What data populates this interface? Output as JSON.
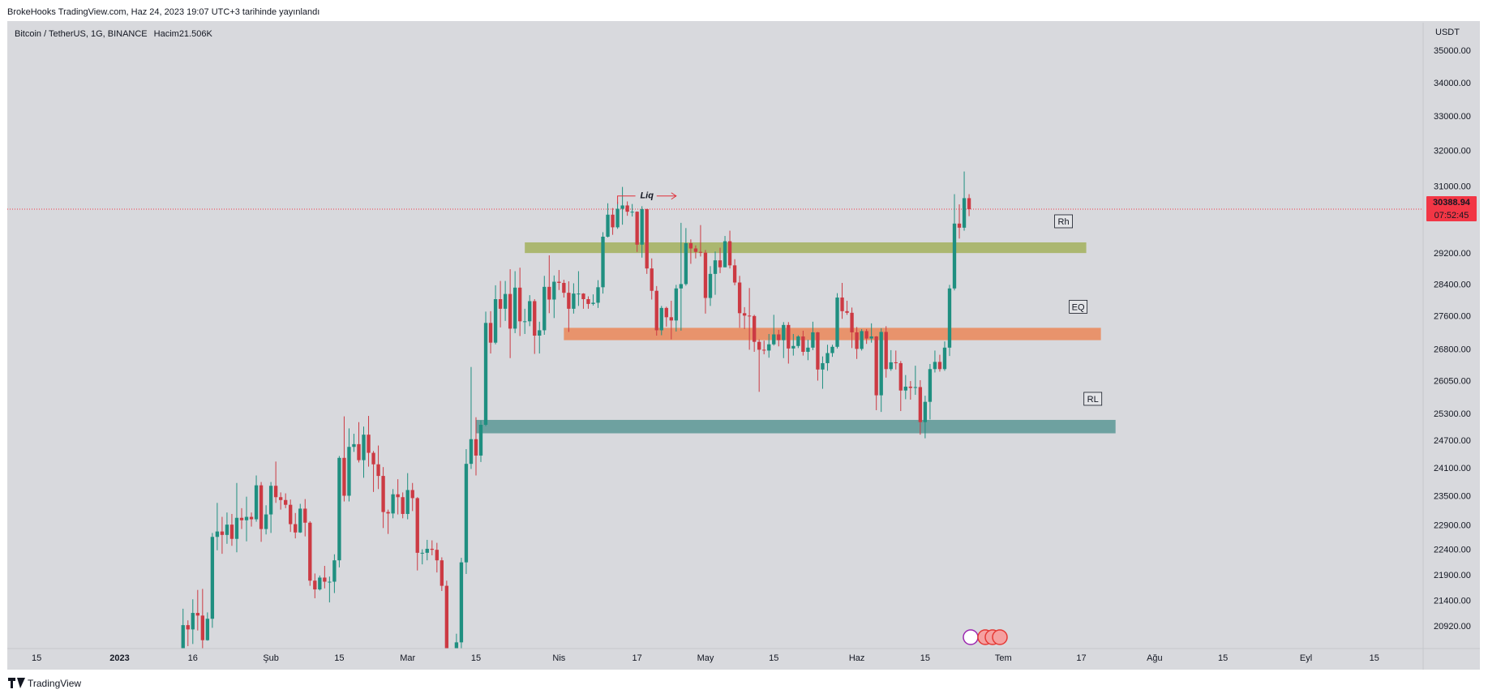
{
  "header": "BrokeHooks TradingView.com, Haz 24, 2023 19:07 UTC+3 tarihinde yayınlandı",
  "footer": "TradingView",
  "chart_data": {
    "type": "candlestick",
    "title": "Bitcoin / TetherUS, 1G, BINANCE",
    "volume_label": "Hacim",
    "volume_value": "21.506K",
    "currency": "USDT",
    "countdown": "07:52:45",
    "log": true,
    "grid": false,
    "up_color": "#1f8f80",
    "down_color": "#cc3a43",
    "last_price_color": "#f23645",
    "x": [
      "2023-01-14",
      "2023-01-15",
      "2023-01-16",
      "2023-01-17",
      "2023-01-18",
      "2023-01-19",
      "2023-01-20",
      "2023-01-21",
      "2023-01-22",
      "2023-01-23",
      "2023-01-24",
      "2023-01-25",
      "2023-01-26",
      "2023-01-27",
      "2023-01-28",
      "2023-01-29",
      "2023-01-30",
      "2023-01-31",
      "2023-02-01",
      "2023-02-02",
      "2023-02-03",
      "2023-02-04",
      "2023-02-05",
      "2023-02-06",
      "2023-02-07",
      "2023-02-08",
      "2023-02-09",
      "2023-02-10",
      "2023-02-11",
      "2023-02-12",
      "2023-02-13",
      "2023-02-14",
      "2023-02-15",
      "2023-02-16",
      "2023-02-17",
      "2023-02-18",
      "2023-02-19",
      "2023-02-20",
      "2023-02-21",
      "2023-02-22",
      "2023-02-23",
      "2023-02-24",
      "2023-02-25",
      "2023-02-26",
      "2023-02-27",
      "2023-02-28",
      "2023-03-01",
      "2023-03-02",
      "2023-03-03",
      "2023-03-04",
      "2023-03-05",
      "2023-03-06",
      "2023-03-07",
      "2023-03-08",
      "2023-03-09",
      "2023-03-10",
      "2023-03-11",
      "2023-03-12",
      "2023-03-13",
      "2023-03-14",
      "2023-03-15",
      "2023-03-16",
      "2023-03-17",
      "2023-03-18",
      "2023-03-19",
      "2023-03-20",
      "2023-03-21",
      "2023-03-22",
      "2023-03-23",
      "2023-03-24",
      "2023-03-25",
      "2023-03-26",
      "2023-03-27",
      "2023-03-28",
      "2023-03-29",
      "2023-03-30",
      "2023-03-31",
      "2023-04-01",
      "2023-04-02",
      "2023-04-03",
      "2023-04-04",
      "2023-04-05",
      "2023-04-06",
      "2023-04-07",
      "2023-04-08",
      "2023-04-09",
      "2023-04-10",
      "2023-04-11",
      "2023-04-12",
      "2023-04-13",
      "2023-04-14",
      "2023-04-15",
      "2023-04-16",
      "2023-04-17",
      "2023-04-18",
      "2023-04-19",
      "2023-04-20",
      "2023-04-21",
      "2023-04-22",
      "2023-04-23",
      "2023-04-24",
      "2023-04-25",
      "2023-04-26",
      "2023-04-27",
      "2023-04-28",
      "2023-04-29",
      "2023-04-30",
      "2023-05-01",
      "2023-05-02",
      "2023-05-03",
      "2023-05-04",
      "2023-05-05",
      "2023-05-06",
      "2023-05-07",
      "2023-05-08",
      "2023-05-09",
      "2023-05-10",
      "2023-05-11",
      "2023-05-12",
      "2023-05-13",
      "2023-05-14",
      "2023-05-15",
      "2023-05-16",
      "2023-05-17",
      "2023-05-18",
      "2023-05-19",
      "2023-05-20",
      "2023-05-21",
      "2023-05-22",
      "2023-05-23",
      "2023-05-24",
      "2023-05-25",
      "2023-05-26",
      "2023-05-27",
      "2023-05-28",
      "2023-05-29",
      "2023-05-30",
      "2023-05-31",
      "2023-06-01",
      "2023-06-02",
      "2023-06-03",
      "2023-06-04",
      "2023-06-05",
      "2023-06-06",
      "2023-06-07",
      "2023-06-08",
      "2023-06-09",
      "2023-06-10",
      "2023-06-11",
      "2023-06-12",
      "2023-06-13",
      "2023-06-14",
      "2023-06-15",
      "2023-06-16",
      "2023-06-17",
      "2023-06-18",
      "2023-06-19",
      "2023-06-20",
      "2023-06-21",
      "2023-06-22",
      "2023-06-23",
      "2023-06-24"
    ],
    "open": [
      19930,
      20950,
      20870,
      21180,
      21130,
      20670,
      21070,
      22670,
      22780,
      22710,
      22920,
      22630,
      23060,
      23010,
      23080,
      23030,
      23740,
      22830,
      23130,
      23730,
      23490,
      23430,
      23330,
      22930,
      22760,
      23250,
      22960,
      21800,
      21630,
      21860,
      21780,
      21780,
      22200,
      24330,
      23520,
      24570,
      24630,
      24280,
      24840,
      24440,
      24190,
      23940,
      23180,
      23150,
      23550,
      23490,
      23140,
      23640,
      23470,
      22350,
      22350,
      22430,
      22410,
      22200,
      21700,
      20360,
      20190,
      20630,
      22160,
      24200,
      24740,
      24380,
      25060,
      27450,
      26970,
      28040,
      27800,
      28170,
      27310,
      28330,
      27490,
      27490,
      27990,
      27140,
      27270,
      28350,
      28030,
      28480,
      28450,
      28200,
      27800,
      28180,
      28180,
      28040,
      27920,
      27950,
      28340,
      29650,
      30240,
      29900,
      30400,
      30490,
      30320,
      30320,
      29440,
      30390,
      28820,
      28250,
      27270,
      27820,
      27590,
      27510,
      28310,
      28420,
      29480,
      29340,
      29250,
      29230,
      28070,
      28680,
      29030,
      28850,
      29530,
      28900,
      28460,
      27690,
      27630,
      27620,
      26990,
      26800,
      26780,
      26930,
      27170,
      27030,
      27400,
      26830,
      26890,
      27120,
      26750,
      26850,
      27220,
      26330,
      26480,
      26720,
      26870,
      28080,
      27740,
      27700,
      27220,
      26820,
      27250,
      27070,
      27120,
      25730,
      27230,
      26340,
      26500,
      26480,
      25840,
      25930,
      25900,
      25920,
      25120,
      25580,
      26340,
      26510,
      26340,
      26850,
      28310,
      30000,
      29890,
      30690
    ],
    "high": [
      21260,
      21040,
      21440,
      21620,
      21640,
      21190,
      22750,
      23370,
      23080,
      23170,
      23140,
      23790,
      23260,
      23500,
      23170,
      23950,
      23810,
      23320,
      23810,
      24250,
      23590,
      23570,
      23440,
      23160,
      23350,
      23450,
      22990,
      21940,
      21900,
      22090,
      21880,
      22320,
      24370,
      25250,
      24980,
      24860,
      25120,
      25020,
      25260,
      24480,
      24600,
      24130,
      23230,
      23660,
      23870,
      23590,
      24000,
      23790,
      23490,
      22420,
      22610,
      22600,
      22550,
      22260,
      21800,
      20370,
      20790,
      22250,
      24520,
      26390,
      25230,
      25160,
      27730,
      27740,
      28390,
      28500,
      28500,
      28800,
      28750,
      28840,
      27800,
      28140,
      28040,
      27480,
      28630,
      29160,
      28640,
      28780,
      28530,
      28490,
      28440,
      28750,
      28190,
      28110,
      28160,
      28520,
      29770,
      30550,
      30420,
      30590,
      31000,
      30600,
      30530,
      30330,
      30470,
      30400,
      29080,
      28370,
      27870,
      27850,
      28000,
      28400,
      30020,
      29880,
      29580,
      29420,
      29960,
      29300,
      28880,
      29260,
      29360,
      29670,
      29810,
      29060,
      28630,
      27840,
      28320,
      27650,
      27050,
      27020,
      27180,
      27650,
      27280,
      27470,
      27470,
      27180,
      27150,
      27260,
      27040,
      27480,
      27230,
      26640,
      26920,
      26920,
      28190,
      28450,
      28000,
      27830,
      27350,
      27300,
      27300,
      27440,
      27130,
      27320,
      27370,
      26790,
      26780,
      26530,
      26200,
      26060,
      26420,
      26080,
      25720,
      26460,
      26780,
      26680,
      27000,
      28400,
      30800,
      30520,
      31430,
      30800
    ],
    "low": [
      19900,
      20560,
      20600,
      20850,
      20420,
      20660,
      20900,
      22400,
      22330,
      22530,
      22490,
      22360,
      22830,
      22580,
      22880,
      22980,
      22570,
      22720,
      22750,
      23370,
      23230,
      23260,
      22770,
      22640,
      22750,
      22680,
      21700,
      21460,
      21610,
      21650,
      21380,
      21560,
      22060,
      23400,
      23400,
      24460,
      24230,
      23900,
      24140,
      23600,
      23660,
      22850,
      22730,
      23050,
      23130,
      23050,
      23030,
      23200,
      22000,
      22120,
      22200,
      22300,
      21960,
      21600,
      20080,
      19620,
      19980,
      20420,
      21930,
      24090,
      23950,
      24240,
      25030,
      26710,
      26930,
      27340,
      27500,
      26600,
      27200,
      27130,
      27180,
      27370,
      26700,
      26710,
      27160,
      27690,
      27570,
      28270,
      28080,
      27230,
      27680,
      27870,
      27800,
      27800,
      27880,
      27820,
      28180,
      29630,
      29700,
      29860,
      29970,
      30210,
      30190,
      29250,
      29100,
      28680,
      28030,
      27140,
      27150,
      27360,
      27050,
      27240,
      27260,
      28380,
      28940,
      29080,
      29130,
      27680,
      27870,
      28150,
      28700,
      28850,
      28820,
      28390,
      27330,
      27300,
      26800,
      26750,
      25810,
      26690,
      26610,
      26900,
      26880,
      26600,
      26470,
      26660,
      26840,
      26660,
      26550,
      26790,
      26070,
      25880,
      26300,
      26630,
      26830,
      27550,
      27650,
      26840,
      26580,
      26780,
      26940,
      26970,
      25390,
      25350,
      26140,
      26300,
      26330,
      25370,
      25640,
      25630,
      25740,
      24840,
      24760,
      25180,
      26260,
      26280,
      26300,
      26650,
      28260,
      29600,
      29810,
      30200
    ],
    "close": [
      20950,
      20870,
      21180,
      21130,
      20670,
      21070,
      22670,
      22780,
      22710,
      22920,
      22630,
      23060,
      23010,
      23080,
      23030,
      23740,
      22830,
      23130,
      23730,
      23490,
      23430,
      23330,
      22930,
      22760,
      23250,
      22960,
      21800,
      21630,
      21860,
      21780,
      21780,
      22200,
      24330,
      23520,
      24570,
      24630,
      24280,
      24840,
      24440,
      24190,
      23940,
      23180,
      23150,
      23550,
      23490,
      23140,
      23640,
      23470,
      22350,
      22350,
      22430,
      22410,
      22200,
      21700,
      20360,
      20190,
      20630,
      22160,
      24200,
      24740,
      24380,
      25060,
      27450,
      26970,
      28040,
      27800,
      28170,
      27310,
      28330,
      27490,
      27490,
      27990,
      27140,
      27270,
      28350,
      28030,
      28480,
      28450,
      28200,
      27800,
      28180,
      28180,
      28040,
      27920,
      27950,
      28340,
      29650,
      30240,
      29900,
      30400,
      30490,
      30320,
      30320,
      29440,
      30390,
      28820,
      28250,
      27270,
      27820,
      27590,
      27510,
      28310,
      28420,
      29480,
      29340,
      29250,
      29230,
      28070,
      28680,
      29030,
      28850,
      29530,
      28900,
      28460,
      27690,
      27630,
      27620,
      26990,
      26800,
      26780,
      26930,
      27170,
      27030,
      27400,
      26830,
      26890,
      27120,
      26750,
      26850,
      27220,
      26330,
      26480,
      26720,
      26870,
      28080,
      27740,
      27700,
      27220,
      26820,
      27250,
      27070,
      27120,
      25730,
      27230,
      26340,
      26500,
      26480,
      25840,
      25930,
      25900,
      25920,
      25120,
      25580,
      26340,
      26510,
      26340,
      26850,
      28310,
      30000,
      29890,
      30690,
      30388.94
    ],
    "xlim": [
      "2022-12-09",
      "2023-09-25"
    ],
    "xticks": [
      {
        "value": "2022-12-15",
        "label": "15"
      },
      {
        "value": "2023-01-01",
        "label": "2023"
      },
      {
        "value": "2023-01-16",
        "label": "16"
      },
      {
        "value": "2023-02-01",
        "label": "Şub"
      },
      {
        "value": "2023-02-15",
        "label": "15"
      },
      {
        "value": "2023-03-01",
        "label": "Mar"
      },
      {
        "value": "2023-03-15",
        "label": "15"
      },
      {
        "value": "2023-04-01",
        "label": "Nis"
      },
      {
        "value": "2023-04-17",
        "label": "17"
      },
      {
        "value": "2023-05-01",
        "label": "May"
      },
      {
        "value": "2023-05-15",
        "label": "15"
      },
      {
        "value": "2023-06-01",
        "label": "Haz"
      },
      {
        "value": "2023-06-15",
        "label": "15"
      },
      {
        "value": "2023-07-01",
        "label": "Tem"
      },
      {
        "value": "2023-07-17",
        "label": "17"
      },
      {
        "value": "2023-08-01",
        "label": "Ağu"
      },
      {
        "value": "2023-08-15",
        "label": "15"
      },
      {
        "value": "2023-09-01",
        "label": "Eyl"
      },
      {
        "value": "2023-09-15",
        "label": "15"
      }
    ],
    "ylim": [
      20516,
      35903
    ],
    "yticks": [
      {
        "value": 35000,
        "label": "35000.00"
      },
      {
        "value": 34000,
        "label": "34000.00"
      },
      {
        "value": 33000,
        "label": "33000.00"
      },
      {
        "value": 32000,
        "label": "32000.00"
      },
      {
        "value": 31000,
        "label": "31000.00"
      },
      {
        "value": 29200,
        "label": "29200.00"
      },
      {
        "value": 28400,
        "label": "28400.00"
      },
      {
        "value": 27600,
        "label": "27600.00"
      },
      {
        "value": 26800,
        "label": "26800.00"
      },
      {
        "value": 26050,
        "label": "26050.00"
      },
      {
        "value": 25300,
        "label": "25300.00"
      },
      {
        "value": 24700,
        "label": "24700.00"
      },
      {
        "value": 24100,
        "label": "24100.00"
      },
      {
        "value": 23500,
        "label": "23500.00"
      },
      {
        "value": 22900,
        "label": "22900.00"
      },
      {
        "value": 22400,
        "label": "22400.00"
      },
      {
        "value": 21900,
        "label": "21900.00"
      },
      {
        "value": 21400,
        "label": "21400.00"
      },
      {
        "value": 20920,
        "label": "20920.00"
      }
    ],
    "zones": [
      {
        "label": "Rh",
        "color": "#abb770",
        "from": "2023-03-25",
        "to": "2023-07-18",
        "top": 29500,
        "bottom": 29220
      },
      {
        "label": "EQ",
        "color": "#e8936c",
        "from": "2023-04-02",
        "to": "2023-07-21",
        "top": 27330,
        "bottom": 27030
      },
      {
        "label": "RL",
        "color": "#6ea1a0",
        "from": "2023-03-15",
        "to": "2023-07-24",
        "top": 25170,
        "bottom": 24870
      }
    ],
    "annotation": {
      "text": "Liq",
      "from": "2023-04-13",
      "to": "2023-04-25",
      "price": 30750,
      "color": "#e0303a"
    }
  }
}
